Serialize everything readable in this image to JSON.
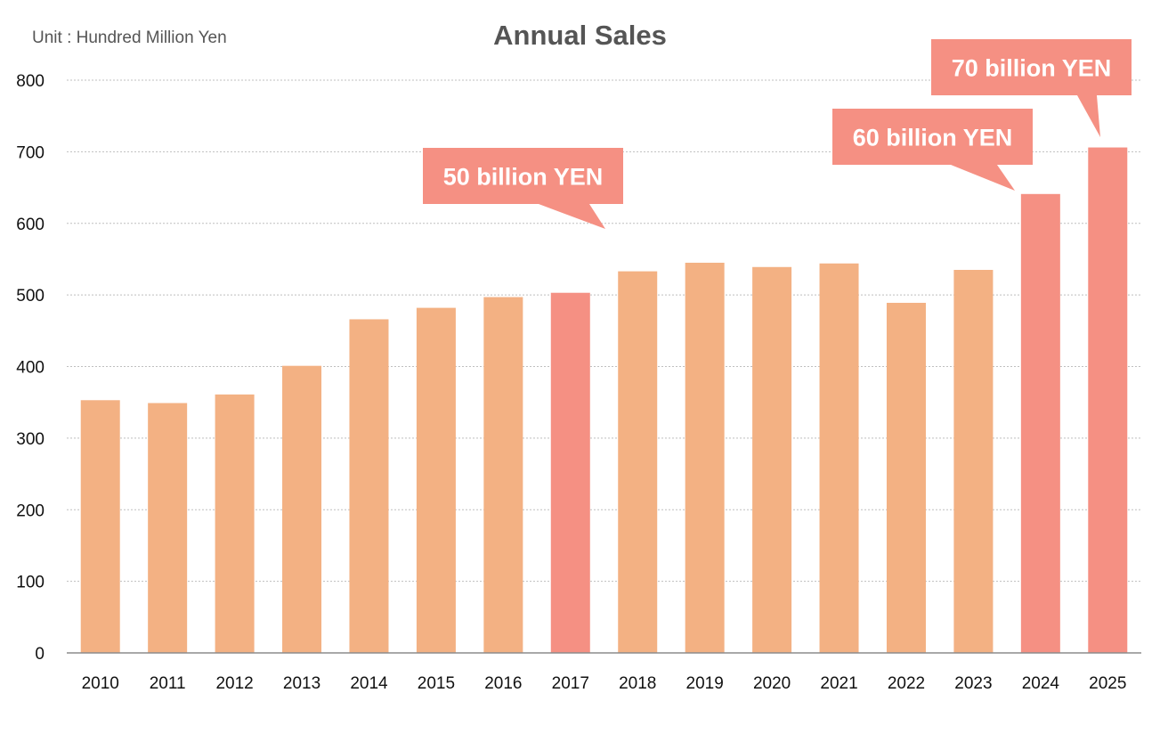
{
  "unit_label": "Unit : Hundred Million Yen",
  "colors": {
    "bar_normal": "#f3b183",
    "bar_highlight": "#f59083",
    "callout_bg": "#f59083",
    "grid": "#bfbfbf",
    "axis": "#8c8c8c"
  },
  "chart_data": {
    "type": "bar",
    "title": "Annual Sales",
    "xlabel": "",
    "ylabel": "",
    "categories": [
      "2010",
      "2011",
      "2012",
      "2013",
      "2014",
      "2015",
      "2016",
      "2017",
      "2018",
      "2019",
      "2020",
      "2021",
      "2022",
      "2023",
      "2024",
      "2025"
    ],
    "values": [
      353,
      349,
      361,
      401,
      466,
      482,
      497,
      503,
      533,
      545,
      539,
      544,
      489,
      535,
      641,
      706
    ],
    "highlighted": [
      "2017",
      "2024",
      "2025"
    ],
    "ylim": [
      0,
      800
    ],
    "yticks": [
      "0",
      "100",
      "200",
      "300",
      "400",
      "500",
      "600",
      "700",
      "800"
    ],
    "grid": true,
    "legend": "none",
    "annotations": [
      {
        "text": "50 billion YEN",
        "category": "2017"
      },
      {
        "text": "60 billion YEN",
        "category": "2024"
      },
      {
        "text": "70 billion YEN",
        "category": "2025"
      }
    ]
  }
}
